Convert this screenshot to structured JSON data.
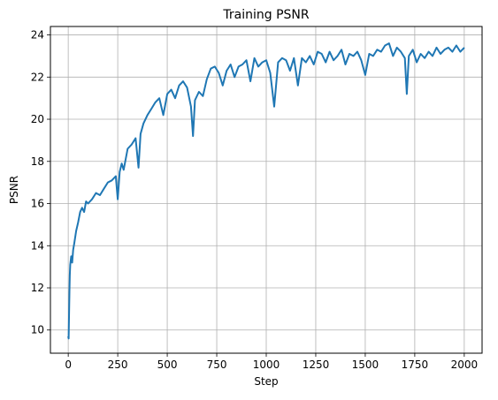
{
  "chart_data": {
    "type": "line",
    "title": "Training PSNR",
    "xlabel": "Step",
    "ylabel": "PSNR",
    "xlim": [
      -90,
      2090
    ],
    "ylim": [
      8.9,
      24.4
    ],
    "xticks": [
      0,
      250,
      500,
      750,
      1000,
      1250,
      1500,
      1750,
      2000
    ],
    "yticks": [
      10,
      12,
      14,
      16,
      18,
      20,
      22,
      24
    ],
    "grid": true,
    "colors": {
      "line": "#1f77b4",
      "grid": "#b0b0b0"
    },
    "series": [
      {
        "x": [
          0,
          2,
          4,
          6,
          8,
          10,
          15,
          20,
          25,
          30,
          40,
          50,
          60,
          70,
          80,
          90,
          100,
          120,
          140,
          160,
          180,
          200,
          220,
          240,
          250,
          260,
          270,
          280,
          300,
          320,
          340,
          355,
          365,
          380,
          400,
          420,
          440,
          460,
          480,
          500,
          520,
          540,
          560,
          580,
          600,
          620,
          630,
          640,
          660,
          680,
          700,
          720,
          740,
          760,
          780,
          800,
          820,
          840,
          860,
          880,
          900,
          920,
          940,
          960,
          980,
          1000,
          1020,
          1040,
          1060,
          1080,
          1100,
          1120,
          1140,
          1160,
          1180,
          1200,
          1220,
          1240,
          1260,
          1280,
          1300,
          1320,
          1340,
          1360,
          1380,
          1400,
          1420,
          1440,
          1460,
          1480,
          1500,
          1520,
          1540,
          1560,
          1580,
          1600,
          1620,
          1640,
          1660,
          1680,
          1700,
          1710,
          1720,
          1740,
          1760,
          1780,
          1800,
          1820,
          1840,
          1860,
          1880,
          1900,
          1920,
          1940,
          1960,
          1980,
          2000
        ],
        "values": [
          9.7,
          9.6,
          10.6,
          11.8,
          12.6,
          13.1,
          13.5,
          13.2,
          13.8,
          14.1,
          14.7,
          15.1,
          15.6,
          15.8,
          15.6,
          16.1,
          16.0,
          16.2,
          16.5,
          16.4,
          16.7,
          17.0,
          17.1,
          17.3,
          16.2,
          17.5,
          17.9,
          17.6,
          18.6,
          18.8,
          19.1,
          17.7,
          19.3,
          19.8,
          20.2,
          20.5,
          20.8,
          21.0,
          20.2,
          21.2,
          21.4,
          21.0,
          21.6,
          21.8,
          21.5,
          20.6,
          19.2,
          20.9,
          21.3,
          21.1,
          21.9,
          22.4,
          22.5,
          22.2,
          21.6,
          22.3,
          22.6,
          22.0,
          22.5,
          22.6,
          22.8,
          21.8,
          22.9,
          22.5,
          22.7,
          22.8,
          22.2,
          20.6,
          22.7,
          22.9,
          22.8,
          22.3,
          22.9,
          21.6,
          22.9,
          22.7,
          23.0,
          22.6,
          23.2,
          23.1,
          22.7,
          23.2,
          22.8,
          23.0,
          23.3,
          22.6,
          23.1,
          23.0,
          23.2,
          22.8,
          22.1,
          23.1,
          23.0,
          23.3,
          23.2,
          23.5,
          23.6,
          23.0,
          23.4,
          23.2,
          22.9,
          21.2,
          23.0,
          23.3,
          22.7,
          23.1,
          22.9,
          23.2,
          23.0,
          23.4,
          23.1,
          23.3,
          23.4,
          23.2,
          23.5,
          23.2,
          23.4
        ]
      }
    ]
  }
}
